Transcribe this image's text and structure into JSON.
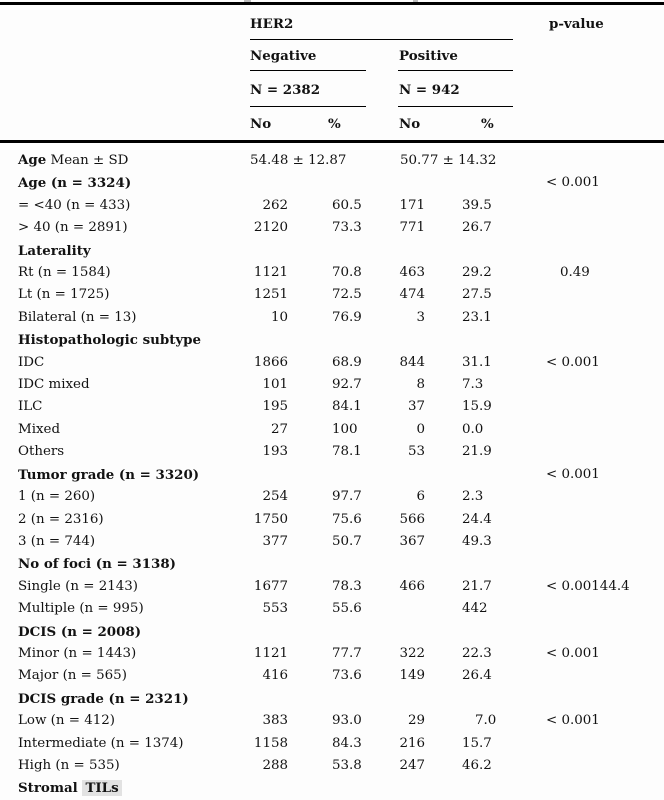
{
  "colors": {
    "rule": "#000000",
    "text": "#121212",
    "background": "#fdfdfd",
    "highlight": "#e2e2e2"
  },
  "header": {
    "her2": "HER2",
    "p_value": "p-value",
    "negative": "Negative",
    "positive": "Positive",
    "n_negative": "N = 2382",
    "n_positive": "N = 942",
    "col_no": "No",
    "col_pct": "%"
  },
  "table": {
    "rows": [
      {
        "type": "mean",
        "label_bold": "Age",
        "label": " Mean ± SD",
        "neg": "54.48 ± 12.87",
        "pos": "50.77 ± 14.32",
        "p": ""
      },
      {
        "type": "group",
        "label": "Age (n = 3324)",
        "p": "< 0.001"
      },
      {
        "type": "data",
        "label": "= <40 (n = 433)",
        "neg_no": "262",
        "neg_pct": "60.5",
        "pos_no": "171",
        "pos_pct": "39.5",
        "p": ""
      },
      {
        "type": "data",
        "label": "> 40 (n = 2891)",
        "neg_no": "2120",
        "neg_pct": "73.3",
        "pos_no": "771",
        "pos_pct": "26.7",
        "p": ""
      },
      {
        "type": "group",
        "label": "Laterality",
        "p": ""
      },
      {
        "type": "data",
        "label": "Rt (n = 1584)",
        "neg_no": "1121",
        "neg_pct": "70.8",
        "pos_no": "463",
        "pos_pct": "29.2",
        "p": "0.49"
      },
      {
        "type": "data",
        "label": "Lt (n = 1725)",
        "neg_no": "1251",
        "neg_pct": "72.5",
        "pos_no": "474",
        "pos_pct": "27.5",
        "p": ""
      },
      {
        "type": "data",
        "label": "Bilateral (n = 13)",
        "neg_no": "10",
        "neg_pct": "76.9",
        "pos_no": "3",
        "pos_pct": "23.1",
        "p": ""
      },
      {
        "type": "group",
        "label": "Histopathologic subtype",
        "p": ""
      },
      {
        "type": "data",
        "label": "IDC",
        "neg_no": "1866",
        "neg_pct": "68.9",
        "pos_no": "844",
        "pos_pct": "31.1",
        "p": "< 0.001"
      },
      {
        "type": "data",
        "label": "IDC mixed",
        "neg_no": "101",
        "neg_pct": "92.7",
        "pos_no": "8",
        "pos_pct": "7.3",
        "p": ""
      },
      {
        "type": "data",
        "label": "ILC",
        "neg_no": "195",
        "neg_pct": "84.1",
        "pos_no": "37",
        "pos_pct": "15.9",
        "p": ""
      },
      {
        "type": "data",
        "label": "Mixed",
        "neg_no": "27",
        "neg_pct": "100",
        "pos_no": "0",
        "pos_pct": "0.0",
        "p": ""
      },
      {
        "type": "data",
        "label": "Others",
        "neg_no": "193",
        "neg_pct": "78.1",
        "pos_no": "53",
        "pos_pct": "21.9",
        "p": ""
      },
      {
        "type": "group",
        "label": "Tumor grade (n = 3320)",
        "p": "< 0.001"
      },
      {
        "type": "data",
        "label": "1 (n = 260)",
        "neg_no": "254",
        "neg_pct": "97.7",
        "pos_no": "6",
        "pos_pct": "2.3",
        "p": ""
      },
      {
        "type": "data",
        "label": "2 (n = 2316)",
        "neg_no": "1750",
        "neg_pct": "75.6",
        "pos_no": "566",
        "pos_pct": "24.4",
        "p": ""
      },
      {
        "type": "data",
        "label": "3 (n = 744)",
        "neg_no": "377",
        "neg_pct": "50.7",
        "pos_no": "367",
        "pos_pct": "49.3",
        "p": ""
      },
      {
        "type": "group",
        "label": "No of foci (n = 3138)",
        "p": ""
      },
      {
        "type": "data",
        "label": "Single (n = 2143)",
        "neg_no": "1677",
        "neg_pct": "78.3",
        "pos_no": "466",
        "pos_pct": "21.7",
        "p": "< 0.00144.4"
      },
      {
        "type": "data",
        "label": "Multiple (n = 995)",
        "neg_no": "553",
        "neg_pct": "55.6",
        "pos_no": "",
        "pos_pct": "442",
        "p": ""
      },
      {
        "type": "group",
        "label": "DCIS (n = 2008)",
        "p": ""
      },
      {
        "type": "data",
        "label": "Minor (n = 1443)",
        "neg_no": "1121",
        "neg_pct": "77.7",
        "pos_no": "322",
        "pos_pct": "22.3",
        "p": "< 0.001"
      },
      {
        "type": "data",
        "label": "Major (n = 565)",
        "neg_no": "416",
        "neg_pct": "73.6",
        "pos_no": "149",
        "pos_pct": "26.4",
        "p": ""
      },
      {
        "type": "group",
        "label": "DCIS grade (n = 2321)",
        "p": ""
      },
      {
        "type": "data",
        "label": "Low (n = 412)",
        "neg_no": "383",
        "neg_pct": "93.0",
        "pos_no": "29",
        "pos_pct": "7.0",
        "pos_pct_indent": true,
        "p": "< 0.001"
      },
      {
        "type": "data",
        "label": "Intermediate (n = 1374)",
        "neg_no": "1158",
        "neg_pct": "84.3",
        "pos_no": "216",
        "pos_pct": "15.7",
        "p": ""
      },
      {
        "type": "data",
        "label": "High (n = 535)",
        "neg_no": "288",
        "neg_pct": "53.8",
        "pos_no": "247",
        "pos_pct": "46.2",
        "p": ""
      },
      {
        "type": "group",
        "label": "Stromal",
        "highlight": "TILs",
        "p": ""
      }
    ]
  }
}
